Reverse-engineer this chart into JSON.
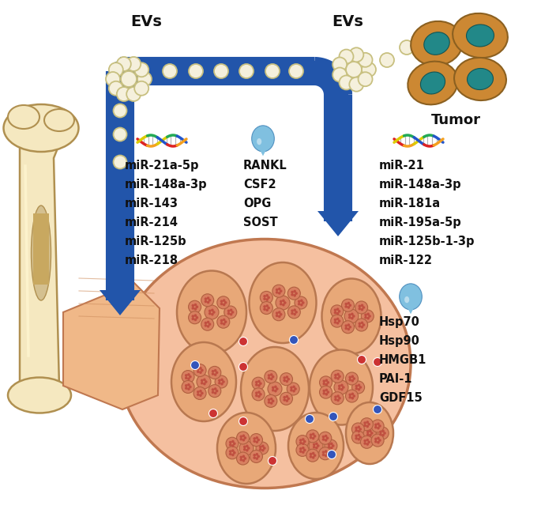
{
  "bg_color": "#ffffff",
  "arrow_color": "#2255aa",
  "ev_fill": "#f5f0dc",
  "ev_edge": "#c8c080",
  "left_evs_label": "EVs",
  "right_evs_label": "EVs",
  "tumor_label": "Tumor",
  "left_mirna": [
    "miR-21a-5p",
    "miR-148a-3p",
    "miR-143",
    "miR-214",
    "miR-125b",
    "miR-218"
  ],
  "left_protein": [
    "RANKL",
    "CSF2",
    "OPG",
    "SOST"
  ],
  "right_mirna": [
    "miR-21",
    "miR-148a-3p",
    "miR-181a",
    "miR-195a-5p",
    "miR-125b-1-3p",
    "miR-122"
  ],
  "right_protein": [
    "Hsp70",
    "Hsp90",
    "HMGB1",
    "PAI-1",
    "GDF15"
  ],
  "text_color": "#111111",
  "water_drop_color": "#80c0e0",
  "bone_color": "#f5e8c0",
  "bone_shadow": "#d4c090",
  "bone_hole": "#c8a860",
  "muscle_outer_color": "#f0c0a0",
  "muscle_fiber_color": "#e8a878",
  "muscle_subfib_color": "#d88860",
  "muscle_dot_red": "#cc3333",
  "muscle_dot_blue": "#3355bb",
  "tumor_cell_body": "#cc8833",
  "tumor_cell_edge": "#8b6020",
  "tumor_nucleus": "#228888",
  "dna_strand_colors": [
    "#dd2222",
    "#f4a020",
    "#ddcc00",
    "#22aa55",
    "#2255cc"
  ]
}
